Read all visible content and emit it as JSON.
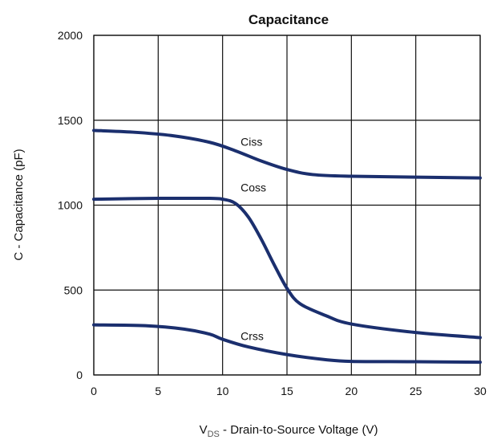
{
  "chart_data": {
    "type": "line",
    "title": "Capacitance",
    "xlabel": {
      "main": "V",
      "subscript": "DS",
      "rest": " - Drain-to-Source Voltage (V)"
    },
    "ylabel": "C - Capacitance (pF)",
    "xlim": [
      0,
      30
    ],
    "ylim": [
      0,
      2000
    ],
    "x_ticks": [
      0,
      5,
      10,
      15,
      20,
      25,
      30
    ],
    "y_ticks": [
      0,
      500,
      1000,
      1500,
      2000
    ],
    "grid": true,
    "line_color": "#1b2f6e",
    "series": [
      {
        "name": "Ciss",
        "points": [
          [
            0,
            1440
          ],
          [
            3,
            1430
          ],
          [
            6,
            1410
          ],
          [
            9,
            1370
          ],
          [
            11,
            1320
          ],
          [
            13,
            1260
          ],
          [
            15,
            1210
          ],
          [
            17,
            1180
          ],
          [
            20,
            1170
          ],
          [
            25,
            1165
          ],
          [
            30,
            1160
          ]
        ]
      },
      {
        "name": "Coss",
        "points": [
          [
            0,
            1035
          ],
          [
            5,
            1040
          ],
          [
            9,
            1040
          ],
          [
            10,
            1035
          ],
          [
            11,
            1010
          ],
          [
            12,
            930
          ],
          [
            13,
            800
          ],
          [
            14,
            650
          ],
          [
            15,
            510
          ],
          [
            16,
            420
          ],
          [
            18,
            350
          ],
          [
            20,
            300
          ],
          [
            25,
            250
          ],
          [
            30,
            220
          ]
        ]
      },
      {
        "name": "Crss",
        "points": [
          [
            0,
            295
          ],
          [
            4,
            290
          ],
          [
            7,
            270
          ],
          [
            9,
            240
          ],
          [
            10,
            210
          ],
          [
            12,
            165
          ],
          [
            15,
            120
          ],
          [
            18,
            90
          ],
          [
            20,
            80
          ],
          [
            25,
            78
          ],
          [
            30,
            75
          ]
        ]
      }
    ],
    "annotations": [
      {
        "text": "Ciss",
        "x": 11.4,
        "y": 1350
      },
      {
        "text": "Coss",
        "x": 11.4,
        "y": 1080
      },
      {
        "text": "Crss",
        "x": 11.4,
        "y": 205
      }
    ]
  }
}
